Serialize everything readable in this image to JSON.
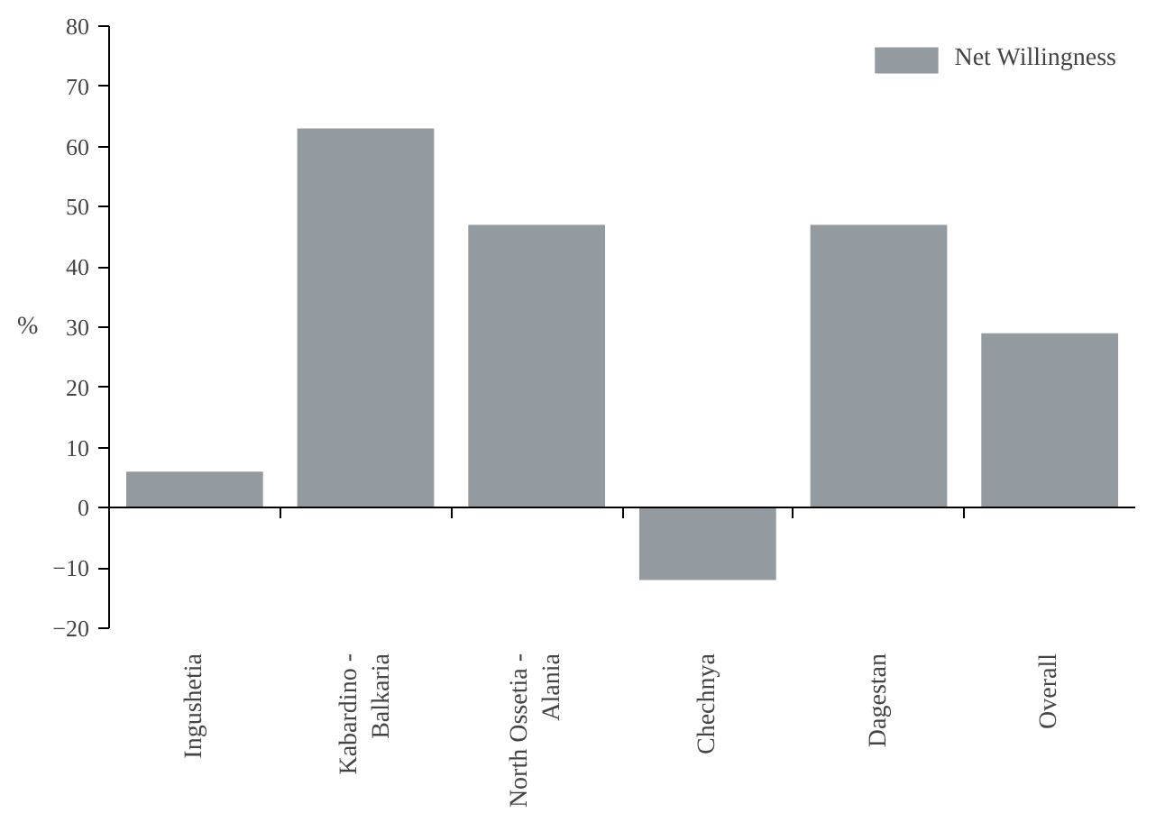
{
  "chart_data": {
    "type": "bar",
    "categories": [
      "Ingushetia",
      "Kabardino -\nBalkaria",
      "North Ossetia -\nAlania",
      "Chechnya",
      "Dagestan",
      "Overall"
    ],
    "series": [
      {
        "name": "Net Willingness",
        "color": "#939aa0",
        "values": [
          6,
          63,
          47,
          -12,
          47,
          29
        ]
      }
    ],
    "ylabel": "%",
    "ylim": [
      -20,
      80
    ],
    "yticks": [
      -20,
      -10,
      0,
      10,
      20,
      30,
      40,
      50,
      60,
      70,
      80
    ],
    "legend": "top right"
  }
}
